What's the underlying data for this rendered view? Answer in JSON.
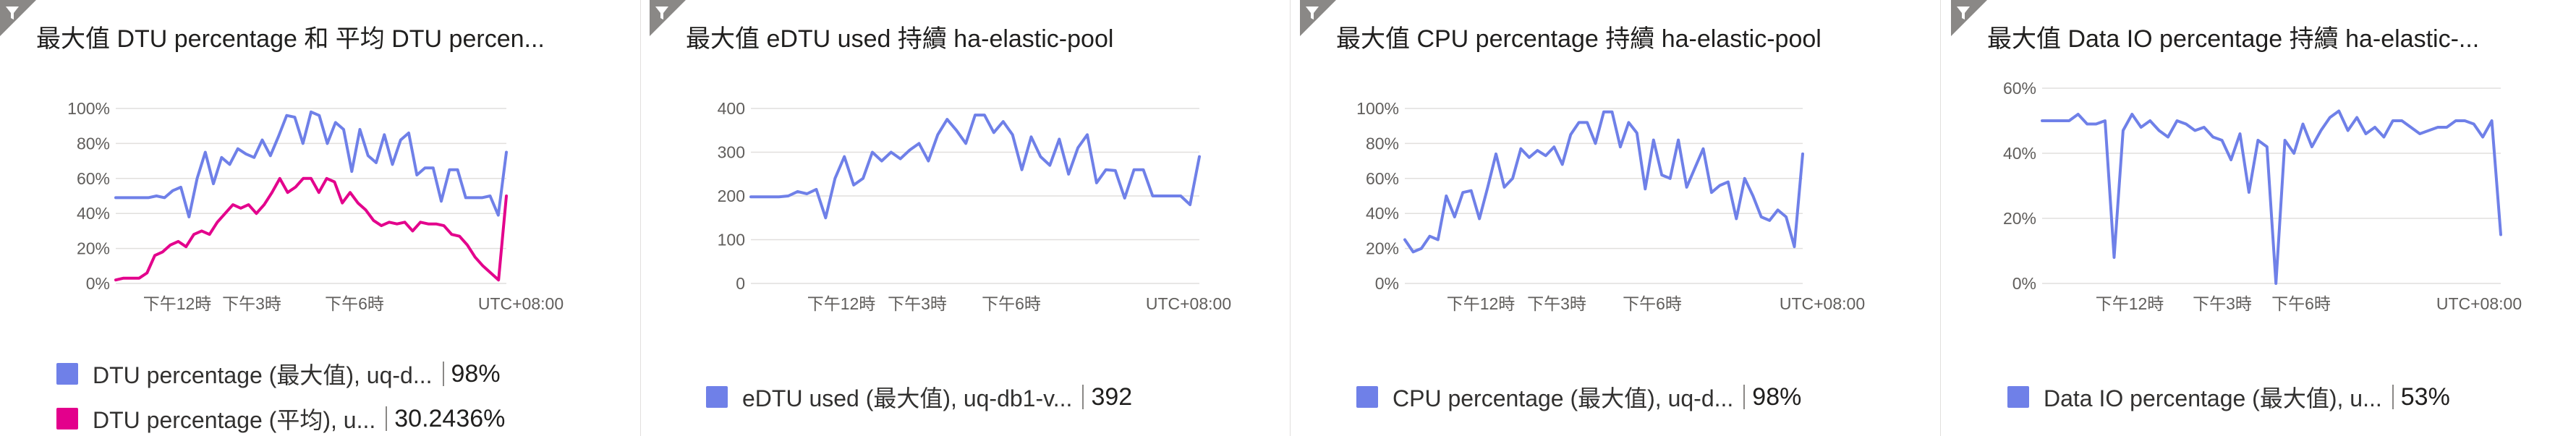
{
  "colors": {
    "blue": "#6f80e8",
    "magenta": "#e3008c",
    "grid": "#e1dfdd",
    "filter_icon_bg": "#8a8886"
  },
  "time_axis": {
    "ticks": [
      "下午12時",
      "下午3時",
      "下午6時"
    ],
    "timezone": "UTC+08:00"
  },
  "tiles": [
    {
      "title": "最大值 DTU percentage 和 平均 DTU percen...",
      "legend": [
        {
          "label": "DTU percentage (最大值), uq-d...",
          "value": "98%",
          "color": "#6f80e8"
        },
        {
          "label": "DTU percentage (平均), u...",
          "value": "30.2436%",
          "color": "#e3008c"
        }
      ]
    },
    {
      "title": "最大值 eDTU used 持續 ha-elastic-pool",
      "legend": [
        {
          "label": "eDTU used (最大值), uq-db1-v...",
          "value": "392",
          "color": "#6f80e8"
        }
      ]
    },
    {
      "title": "最大值 CPU percentage 持續 ha-elastic-pool",
      "legend": [
        {
          "label": "CPU percentage (最大值), uq-d...",
          "value": "98%",
          "color": "#6f80e8"
        }
      ]
    },
    {
      "title": "最大值 Data IO percentage 持續 ha-elastic-...",
      "legend": [
        {
          "label": "Data IO percentage (最大值), u...",
          "value": "53%",
          "color": "#6f80e8"
        }
      ]
    }
  ],
  "chart_data": [
    {
      "type": "line",
      "y_ticks": [
        "100%",
        "80%",
        "60%",
        "40%",
        "20%",
        "0%"
      ],
      "ylim": [
        0,
        100
      ],
      "grid": true,
      "series": [
        {
          "name": "DTU percentage (最大值), uq-d...",
          "color": "#6f80e8",
          "values": [
            49,
            49,
            49,
            49,
            49,
            50,
            49,
            53,
            55,
            38,
            60,
            75,
            57,
            72,
            68,
            77,
            74,
            72,
            82,
            73,
            84,
            96,
            95,
            80,
            98,
            96,
            80,
            92,
            88,
            64,
            88,
            73,
            69,
            85,
            68,
            82,
            86,
            62,
            66,
            66,
            47,
            65,
            65,
            49,
            49,
            49,
            50,
            39,
            75
          ]
        },
        {
          "name": "DTU percentage (平均), u...",
          "color": "#e3008c",
          "values": [
            2,
            3,
            3,
            3,
            6,
            16,
            18,
            22,
            24,
            21,
            28,
            30,
            28,
            35,
            40,
            45,
            43,
            45,
            40,
            45,
            52,
            60,
            52,
            55,
            60,
            60,
            52,
            60,
            58,
            46,
            52,
            46,
            42,
            36,
            33,
            35,
            34,
            35,
            30,
            35,
            34,
            34,
            33,
            28,
            27,
            22,
            15,
            10,
            6,
            2,
            50
          ]
        }
      ]
    },
    {
      "type": "line",
      "y_ticks": [
        "400",
        "300",
        "200",
        "100",
        "0"
      ],
      "ylim": [
        0,
        400
      ],
      "grid": true,
      "series": [
        {
          "name": "eDTU used (最大值), uq-db1-v...",
          "color": "#6f80e8",
          "values": [
            198,
            198,
            198,
            198,
            200,
            210,
            205,
            215,
            150,
            240,
            290,
            225,
            240,
            300,
            280,
            300,
            285,
            305,
            320,
            280,
            340,
            375,
            350,
            320,
            385,
            385,
            345,
            370,
            340,
            260,
            335,
            290,
            270,
            330,
            250,
            310,
            340,
            230,
            260,
            258,
            195,
            260,
            260,
            200,
            200,
            200,
            200,
            180,
            290
          ]
        }
      ]
    },
    {
      "type": "line",
      "y_ticks": [
        "100%",
        "80%",
        "60%",
        "40%",
        "20%",
        "0%"
      ],
      "ylim": [
        0,
        100
      ],
      "grid": true,
      "series": [
        {
          "name": "CPU percentage (最大值), uq-d...",
          "color": "#6f80e8",
          "values": [
            25,
            18,
            20,
            27,
            25,
            50,
            38,
            52,
            53,
            37,
            55,
            74,
            55,
            60,
            77,
            72,
            76,
            73,
            78,
            68,
            85,
            92,
            92,
            80,
            98,
            98,
            78,
            92,
            86,
            54,
            82,
            62,
            60,
            82,
            55,
            66,
            77,
            52,
            56,
            58,
            37,
            60,
            50,
            38,
            36,
            42,
            38,
            21,
            74
          ]
        }
      ]
    },
    {
      "type": "line",
      "y_ticks": [
        "60%",
        "40%",
        "20%",
        "0%"
      ],
      "ylim": [
        0,
        60
      ],
      "grid": true,
      "series": [
        {
          "name": "Data IO percentage (最大值), u...",
          "color": "#6f80e8",
          "values": [
            50,
            50,
            50,
            50,
            52,
            49,
            49,
            50,
            8,
            47,
            52,
            48,
            50,
            47,
            45,
            50,
            49,
            47,
            48,
            45,
            44,
            38,
            46,
            28,
            44,
            42,
            0,
            44,
            40,
            49,
            42,
            47,
            51,
            53,
            47,
            51,
            46,
            48,
            45,
            50,
            50,
            48,
            46,
            47,
            48,
            48,
            50,
            50,
            49,
            45,
            50,
            15
          ]
        }
      ]
    }
  ]
}
